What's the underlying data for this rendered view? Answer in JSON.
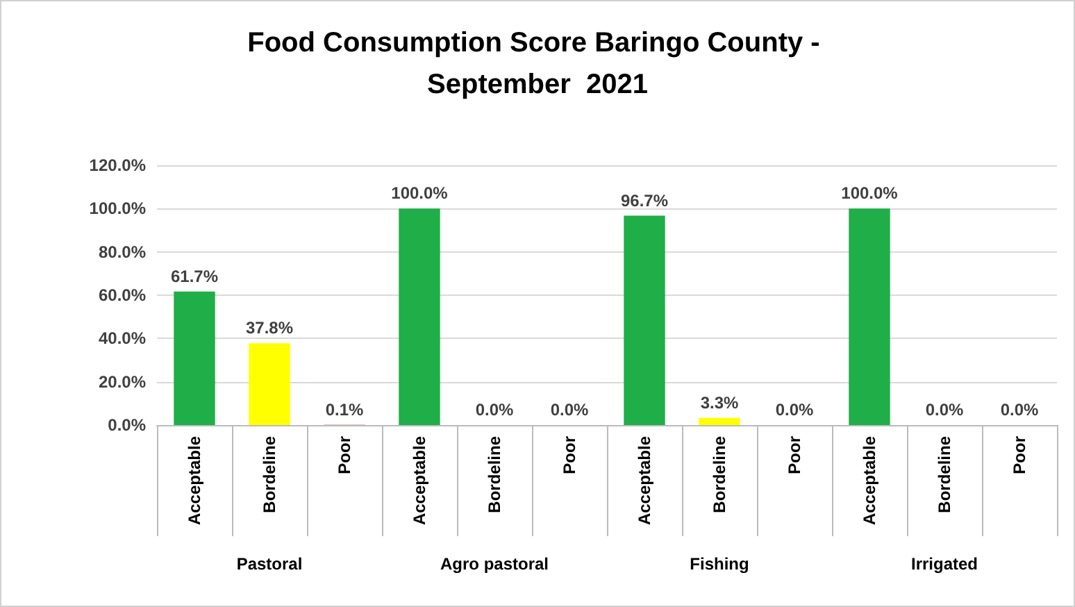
{
  "chart_data": {
    "type": "bar",
    "title": "Food Consumption Score Baringo County - September  2021",
    "categories": [
      "Acceptable",
      "Bordeline",
      "Poor",
      "Acceptable",
      "Bordeline",
      "Poor",
      "Acceptable",
      "Bordeline",
      "Poor",
      "Acceptable",
      "Bordeline",
      "Poor"
    ],
    "values": [
      61.7,
      37.8,
      0.1,
      100,
      0,
      0,
      96.7,
      3.3,
      0,
      100,
      0,
      0
    ],
    "colors": [
      "#1fae48",
      "#ffff00",
      "#c00000",
      "#1fae48",
      "#ffff00",
      "#c00000",
      "#1fae48",
      "#ffff00",
      "#c00000",
      "#1fae48",
      "#ffff00",
      "#c00000"
    ],
    "value_labels": [
      "61.7%",
      "37.8%",
      "0.1%",
      "100.0%",
      "0.0%",
      "0.0%",
      "96.7%",
      "3.3%",
      "0.0%",
      "100.0%",
      "0.0%",
      "0.0%"
    ],
    "ylim": [
      0,
      120
    ],
    "yticks": [
      {
        "value": 0,
        "label": "0.0%"
      },
      {
        "value": 20,
        "label": "20.0%"
      },
      {
        "value": 40,
        "label": "40.0%"
      },
      {
        "value": 60,
        "label": "60.0%"
      },
      {
        "value": 80,
        "label": "80.0%"
      },
      {
        "value": 100,
        "label": "100.0%"
      },
      {
        "value": 120,
        "label": "120.0%"
      }
    ],
    "annotations": [
      "Pastoral",
      "Agro pastoral",
      "Fishing",
      "Irrigated"
    ],
    "grid": "y"
  }
}
